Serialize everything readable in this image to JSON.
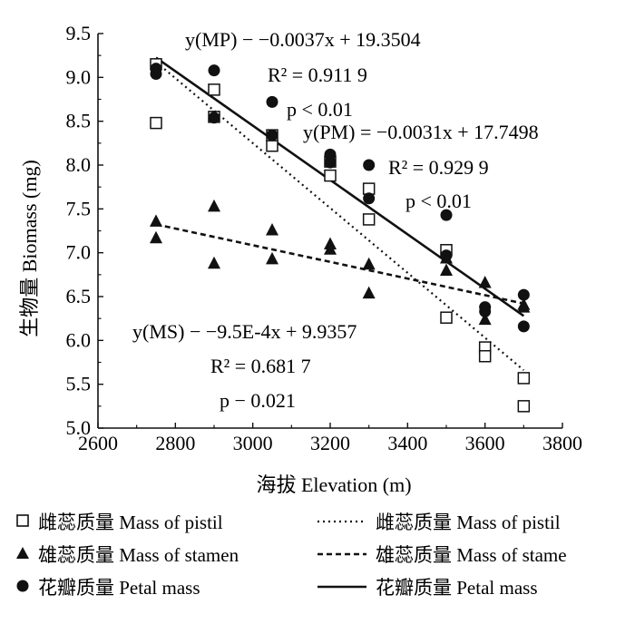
{
  "chart_data": {
    "type": "scatter",
    "xlabel": "海拔 Elevation (m)",
    "ylabel": "生物量 Biomass (mg)",
    "xlim": [
      2600,
      3800
    ],
    "ylim": [
      5.0,
      9.5
    ],
    "xticks": [
      2600,
      2800,
      3000,
      3200,
      3400,
      3600,
      3800
    ],
    "yticks": [
      5.0,
      5.5,
      6.0,
      6.5,
      7.0,
      7.5,
      8.0,
      8.5,
      9.0,
      9.5
    ],
    "xtick_labels": [
      "2600",
      "2800",
      "3000",
      "3200",
      "3400",
      "3600",
      "3800"
    ],
    "ytick_labels": [
      "5.0",
      "5.5",
      "6.0",
      "6.5",
      "7.0",
      "7.5",
      "8.0",
      "8.5",
      "9.0",
      "9.5"
    ],
    "series": [
      {
        "name": "雌蕊质量 Mass of pistil",
        "marker": "open-square",
        "x": [
          2750,
          2750,
          2900,
          2900,
          3050,
          3050,
          3200,
          3200,
          3300,
          3300,
          3500,
          3500,
          3600,
          3600,
          3700,
          3700
        ],
        "y": [
          9.15,
          8.48,
          8.86,
          8.55,
          8.22,
          8.34,
          7.88,
          8.04,
          7.73,
          7.38,
          7.03,
          6.26,
          5.92,
          5.82,
          5.57,
          5.25
        ]
      },
      {
        "name": "雄蕊质量 Mass of stamen",
        "marker": "filled-triangle",
        "x": [
          2750,
          2750,
          2900,
          2900,
          3050,
          3050,
          3200,
          3200,
          3300,
          3300,
          3500,
          3500,
          3600,
          3600,
          3700,
          3700
        ],
        "y": [
          7.36,
          7.17,
          7.53,
          6.88,
          7.26,
          6.93,
          7.1,
          7.04,
          6.87,
          6.54,
          6.8,
          6.94,
          6.66,
          6.24,
          6.41,
          6.38
        ]
      },
      {
        "name": "花瓣质量 Petal mass",
        "marker": "filled-circle",
        "x": [
          2750,
          2750,
          2900,
          2900,
          3050,
          3050,
          3200,
          3200,
          3300,
          3300,
          3500,
          3500,
          3600,
          3600,
          3700,
          3700
        ],
        "y": [
          9.1,
          9.04,
          9.08,
          8.54,
          8.72,
          8.34,
          8.12,
          8.03,
          8.0,
          7.62,
          7.43,
          6.97,
          6.38,
          6.33,
          6.52,
          6.16
        ]
      }
    ],
    "fits": [
      {
        "name": "雌蕊质量 Mass of pistil",
        "style": "dotted",
        "slope": -0.0037,
        "intercept": 19.3504,
        "x_range": [
          2750,
          3700
        ]
      },
      {
        "name": "雄蕊质量 Mass of stame",
        "style": "dashed",
        "slope": -0.00095,
        "intercept": 9.9357,
        "x_range": [
          2750,
          3700
        ]
      },
      {
        "name": "花瓣质量 Petal mass",
        "style": "solid",
        "slope": -0.0031,
        "intercept": 17.7498,
        "x_range": [
          2750,
          3700
        ]
      }
    ],
    "annotations": [
      {
        "id": "mp-eq",
        "text": "y(MP) − −0.0037x + 19.3504"
      },
      {
        "id": "mp-r2",
        "text": "R² = 0.911 9"
      },
      {
        "id": "mp-p",
        "text": "p < 0.01"
      },
      {
        "id": "pm-eq",
        "text": "y(PM) = −0.0031x + 17.7498"
      },
      {
        "id": "pm-r2",
        "text": "R² = 0.929 9"
      },
      {
        "id": "pm-p",
        "text": "p < 0.01"
      },
      {
        "id": "ms-eq",
        "text": "y(MS) − −9.5E-4x + 9.9357"
      },
      {
        "id": "ms-r2",
        "text": "R² = 0.681 7"
      },
      {
        "id": "ms-p",
        "text": "p − 0.021"
      }
    ],
    "legend": {
      "placement": "bottom",
      "markers": [
        "雌蕊质量 Mass of pistil",
        "雄蕊质量 Mass of stamen",
        "花瓣质量 Petal mass"
      ],
      "lines": [
        "雌蕊质量 Mass of pistil",
        "雄蕊质量 Mass of stame",
        "花瓣质量 Petal mass"
      ]
    }
  }
}
